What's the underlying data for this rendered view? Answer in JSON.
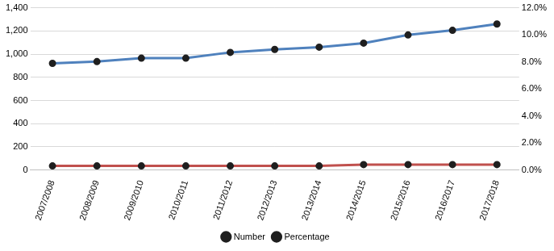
{
  "chart_data": {
    "type": "line",
    "categories": [
      "2007/2008",
      "2008/2009",
      "2009/2010",
      "2010/2011",
      "2011/2012",
      "2012/2013",
      "2013/2014",
      "2014/2015",
      "2015/2016",
      "2016/2017",
      "2017/2018"
    ],
    "series": [
      {
        "name": "Number",
        "color": "#4f81bd",
        "marker": "circle",
        "values": [
          920,
          935,
          965,
          965,
          1015,
          1040,
          1060,
          1095,
          1165,
          1205,
          1260
        ]
      },
      {
        "name": "Percentage",
        "color": "#c0504d",
        "marker": "circle",
        "axis": "y2",
        "values": [
          0.3,
          0.3,
          0.3,
          0.3,
          0.3,
          0.3,
          0.3,
          0.4,
          0.4,
          0.4,
          0.4
        ]
      }
    ],
    "ylim": [
      0,
      1400
    ],
    "yticks": [
      0,
      200,
      400,
      600,
      800,
      {
        "value": 1000,
        "label": "1,000"
      },
      {
        "value": 1200,
        "label": "1,200"
      },
      {
        "value": 1400,
        "label": "1,400"
      }
    ],
    "y2lim": [
      0,
      12
    ],
    "y2ticks": [
      {
        "value": 0,
        "label": "0.0%"
      },
      {
        "value": 2,
        "label": "2.0%"
      },
      {
        "value": 4,
        "label": "4.0%"
      },
      {
        "value": 6,
        "label": "6.0%"
      },
      {
        "value": 8,
        "label": "8.0%"
      },
      {
        "value": 10,
        "label": "10.0%"
      },
      {
        "value": 12,
        "label": "12.0%"
      }
    ],
    "grid": true,
    "legend": "bottom"
  }
}
